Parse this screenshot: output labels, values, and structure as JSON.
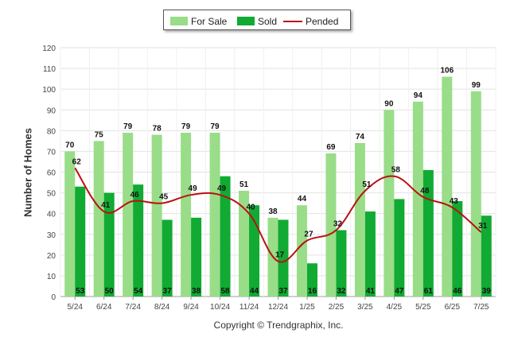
{
  "legend": {
    "for_sale": "For Sale",
    "sold": "Sold",
    "pended": "Pended"
  },
  "copyright": "Copyright © Trendgraphix, Inc.",
  "chart_data": {
    "type": "bar",
    "title": "",
    "xlabel": "",
    "ylabel": "Number of Homes",
    "ylim": [
      0,
      120
    ],
    "yticks": [
      0,
      10,
      20,
      30,
      40,
      50,
      60,
      70,
      80,
      90,
      100,
      110,
      120
    ],
    "grid": true,
    "legend_position": "top-center",
    "categories": [
      "5/24",
      "6/24",
      "7/24",
      "8/24",
      "9/24",
      "10/24",
      "11/24",
      "12/24",
      "1/25",
      "2/25",
      "3/25",
      "4/25",
      "5/25",
      "6/25",
      "7/25"
    ],
    "series": [
      {
        "name": "For Sale",
        "type": "bar",
        "color": "#99dd88",
        "values": [
          70,
          75,
          79,
          78,
          79,
          79,
          51,
          38,
          44,
          69,
          74,
          90,
          94,
          106,
          99
        ]
      },
      {
        "name": "Sold",
        "type": "bar",
        "color": "#11aa33",
        "values": [
          53,
          50,
          54,
          37,
          38,
          58,
          44,
          37,
          16,
          32,
          41,
          47,
          61,
          46,
          39
        ]
      },
      {
        "name": "Pended",
        "type": "line",
        "color": "#bb1111",
        "values": [
          62,
          41,
          46,
          45,
          49,
          49,
          40,
          17,
          27,
          32,
          51,
          58,
          48,
          43,
          31
        ]
      }
    ]
  }
}
